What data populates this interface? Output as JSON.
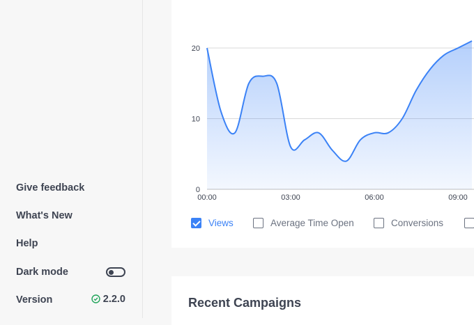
{
  "sidebar": {
    "give_feedback": "Give feedback",
    "whats_new": "What's New",
    "help": "Help",
    "dark_mode": "Dark mode",
    "dark_mode_enabled": false,
    "version_label": "Version",
    "version_value": "2.2.0"
  },
  "legend": [
    {
      "label": "Views",
      "checked": true
    },
    {
      "label": "Average Time Open",
      "checked": false
    },
    {
      "label": "Conversions",
      "checked": false
    },
    {
      "label": "",
      "checked": false
    }
  ],
  "recent_campaigns": {
    "title": "Recent Campaigns"
  },
  "colors": {
    "accent": "#3b82f6",
    "ok": "#22a55b",
    "text": "#3e4452"
  },
  "chart_data": {
    "type": "area",
    "x": [
      "00:00",
      "00:30",
      "01:00",
      "01:30",
      "02:00",
      "02:30",
      "03:00",
      "03:30",
      "04:00",
      "04:30",
      "05:00",
      "05:30",
      "06:00",
      "06:30",
      "07:00",
      "07:30",
      "08:00",
      "08:30",
      "09:00",
      "09:30"
    ],
    "xticks": [
      "00:00",
      "03:00",
      "06:00",
      "09:00"
    ],
    "yticks": [
      "0",
      "10",
      "20"
    ],
    "series": [
      {
        "name": "Views",
        "values": [
          20,
          11,
          8,
          15,
          16,
          15,
          6,
          7,
          8,
          5.5,
          4,
          7,
          8,
          8,
          10,
          14,
          17,
          19,
          20,
          21
        ]
      }
    ],
    "ylim": [
      0,
      20
    ],
    "grid": true
  }
}
